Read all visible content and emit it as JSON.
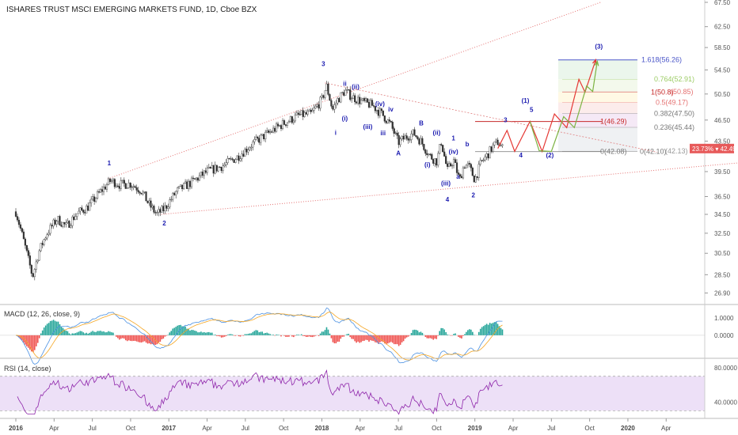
{
  "chart_data": [
    {
      "type": "candlestick",
      "title": "ISHARES TRUST MSCI EMERGING MARKETS FUND, 1D, Cboe BZX",
      "y_ticks": [
        26.9,
        28.5,
        30.5,
        32.5,
        34.5,
        36.5,
        39.5,
        43.5,
        46.5,
        50.5,
        54.5,
        58.5,
        62.5,
        67.5
      ],
      "ylim": [
        26.0,
        68.0
      ],
      "x_ticks": [
        "2016",
        "Apr",
        "Jul",
        "Oct",
        "2017",
        "Apr",
        "Jul",
        "Oct",
        "2018",
        "Apr",
        "Jul",
        "Oct",
        "2019",
        "Apr",
        "Jul",
        "Oct",
        "2020",
        "Apr"
      ],
      "x_tick_years": [
        2016.0,
        2016.25,
        2016.5,
        2016.75,
        2017.0,
        2017.25,
        2017.5,
        2017.75,
        2018.0,
        2018.25,
        2018.5,
        2018.75,
        2019.0,
        2019.25,
        2019.5,
        2019.75,
        2020.0,
        2020.25
      ],
      "price_path": [
        [
          2016.0,
          34.8
        ],
        [
          2016.04,
          32.4
        ],
        [
          2016.08,
          30.0
        ],
        [
          2016.11,
          28.3
        ],
        [
          2016.15,
          30.6
        ],
        [
          2016.2,
          32.4
        ],
        [
          2016.27,
          34.0
        ],
        [
          2016.33,
          33.2
        ],
        [
          2016.4,
          34.6
        ],
        [
          2016.47,
          35.3
        ],
        [
          2016.55,
          37.0
        ],
        [
          2016.62,
          38.4
        ],
        [
          2016.68,
          37.9
        ],
        [
          2016.75,
          38.0
        ],
        [
          2016.82,
          37.2
        ],
        [
          2016.87,
          35.6
        ],
        [
          2016.92,
          34.5
        ],
        [
          2016.97,
          35.1
        ],
        [
          2017.05,
          37.1
        ],
        [
          2017.15,
          38.2
        ],
        [
          2017.25,
          39.5
        ],
        [
          2017.35,
          40.2
        ],
        [
          2017.45,
          41.4
        ],
        [
          2017.55,
          43.2
        ],
        [
          2017.65,
          44.6
        ],
        [
          2017.75,
          46.0
        ],
        [
          2017.85,
          47.2
        ],
        [
          2017.93,
          47.4
        ],
        [
          2018.0,
          49.6
        ],
        [
          2018.03,
          51.8
        ],
        [
          2018.07,
          48.0
        ],
        [
          2018.1,
          49.5
        ],
        [
          2018.15,
          51.0
        ],
        [
          2018.2,
          50.0
        ],
        [
          2018.27,
          49.2
        ],
        [
          2018.33,
          48.7
        ],
        [
          2018.4,
          47.2
        ],
        [
          2018.45,
          45.8
        ],
        [
          2018.5,
          43.3
        ],
        [
          2018.55,
          44.1
        ],
        [
          2018.6,
          44.6
        ],
        [
          2018.65,
          43.4
        ],
        [
          2018.7,
          41.6
        ],
        [
          2018.75,
          40.8
        ],
        [
          2018.78,
          43.4
        ],
        [
          2018.82,
          39.6
        ],
        [
          2018.86,
          41.0
        ],
        [
          2018.9,
          38.4
        ],
        [
          2018.93,
          40.4
        ],
        [
          2018.96,
          40.2
        ],
        [
          2019.0,
          38.5
        ],
        [
          2019.04,
          40.6
        ],
        [
          2019.08,
          41.6
        ],
        [
          2019.12,
          42.8
        ],
        [
          2019.15,
          43.4
        ],
        [
          2019.18,
          42.5
        ]
      ],
      "macd": {
        "title": "MACD (12, 26, close, 9)",
        "y_ticks": [
          "1.0000",
          "0.0000"
        ],
        "y_tick_values": [
          1.0,
          0.0
        ],
        "ylim": [
          -1.25,
          1.7
        ]
      },
      "rsi": {
        "title": "RSI (14, close)",
        "y_ticks": [
          "80.0000",
          "40.0000"
        ],
        "y_tick_values": [
          80,
          40
        ],
        "ylim": [
          22,
          90
        ],
        "band": [
          30,
          70
        ]
      },
      "price_badge": {
        "text": "23.73% ▾ 42.49",
        "value": 42.49
      },
      "wave_labels": [
        {
          "text": "1",
          "x": 2016.61,
          "y": 40.3
        },
        {
          "text": "2",
          "x": 2016.97,
          "y": 33.3
        },
        {
          "text": "3",
          "x": 2018.01,
          "y": 55.2
        },
        {
          "text": "ii",
          "x": 2018.15,
          "y": 51.8
        },
        {
          "text": "(ii)",
          "x": 2018.22,
          "y": 51.3
        },
        {
          "text": "(i)",
          "x": 2018.15,
          "y": 46.4
        },
        {
          "text": "i",
          "x": 2018.09,
          "y": 44.4
        },
        {
          "text": "(iii)",
          "x": 2018.3,
          "y": 45.2
        },
        {
          "text": "(iv)",
          "x": 2018.38,
          "y": 48.6
        },
        {
          "text": "iv",
          "x": 2018.45,
          "y": 47.8
        },
        {
          "text": "iii",
          "x": 2018.4,
          "y": 44.3
        },
        {
          "text": "A",
          "x": 2018.5,
          "y": 41.6
        },
        {
          "text": "B",
          "x": 2018.65,
          "y": 45.7
        },
        {
          "text": "(ii)",
          "x": 2018.75,
          "y": 44.4
        },
        {
          "text": "1",
          "x": 2018.86,
          "y": 43.6
        },
        {
          "text": "b",
          "x": 2018.95,
          "y": 42.8
        },
        {
          "text": "(iv)",
          "x": 2018.86,
          "y": 41.8
        },
        {
          "text": "(i)",
          "x": 2018.69,
          "y": 40.1
        },
        {
          "text": "a",
          "x": 2018.89,
          "y": 38.6
        },
        {
          "text": "(iii)",
          "x": 2018.81,
          "y": 37.8
        },
        {
          "text": "4",
          "x": 2018.82,
          "y": 35.9
        },
        {
          "text": "2",
          "x": 2018.99,
          "y": 36.4
        },
        {
          "text": "3",
          "x": 2019.2,
          "y": 46.2
        },
        {
          "text": "4",
          "x": 2019.3,
          "y": 41.3
        },
        {
          "text": "5",
          "x": 2019.37,
          "y": 47.7
        },
        {
          "text": "(1)",
          "x": 2019.33,
          "y": 49.1
        },
        {
          "text": "(2)",
          "x": 2019.49,
          "y": 41.3
        },
        {
          "text": "(3)",
          "x": 2019.81,
          "y": 58.3
        }
      ],
      "fib_labels": [
        {
          "text": "1.618(56.26)",
          "value": 56.26
        },
        {
          "text": "0.764(52.91)",
          "value": 52.91
        },
        {
          "text": "1(50.8)",
          "value": 50.8
        },
        {
          "text": "(50.85)",
          "value": 50.85
        },
        {
          "text": "0.5(49.17)",
          "value": 49.17
        },
        {
          "text": "0.382(47.50)",
          "value": 47.5
        },
        {
          "text": "1(46.29)",
          "value": 46.29
        },
        {
          "text": "0.236(45.44)",
          "value": 45.44
        },
        {
          "text": "0(42.08)",
          "value": 42.08
        },
        {
          "text": "0(42.10)",
          "value": 42.1
        },
        {
          "text": "(42.13)",
          "value": 42.13
        }
      ],
      "projection_path": [
        [
          2019.15,
          42.5
        ],
        [
          2019.21,
          45.0
        ],
        [
          2019.26,
          42.1
        ],
        [
          2019.36,
          46.3
        ],
        [
          2019.44,
          42.1
        ],
        [
          2019.52,
          47.4
        ],
        [
          2019.6,
          45.4
        ],
        [
          2019.68,
          52.9
        ],
        [
          2019.72,
          50.8
        ],
        [
          2019.79,
          56.3
        ]
      ],
      "projection_path_2": [
        [
          2019.36,
          46.3
        ],
        [
          2019.42,
          42.2
        ],
        [
          2019.5,
          42.1
        ],
        [
          2019.58,
          47.0
        ],
        [
          2019.65,
          45.4
        ],
        [
          2019.73,
          51.8
        ],
        [
          2019.77,
          50.9
        ],
        [
          2019.8,
          56.0
        ]
      ],
      "colors": {
        "up": "#26a69a",
        "down": "#ef5350",
        "candle_dark": "#333333",
        "macd_line": "#4a90e2",
        "signal_line": "#f5a623",
        "hist_pos": "#26a69a",
        "hist_neg": "#ef5350",
        "rsi_line": "#8e24aa",
        "rsi_band": "#ede0f7",
        "trend_line": "#e57373",
        "projection": "#e53935",
        "projection_alt": "#7cb342",
        "wave_label": "#1b1bb0",
        "badge": "#e75a5a"
      }
    }
  ]
}
